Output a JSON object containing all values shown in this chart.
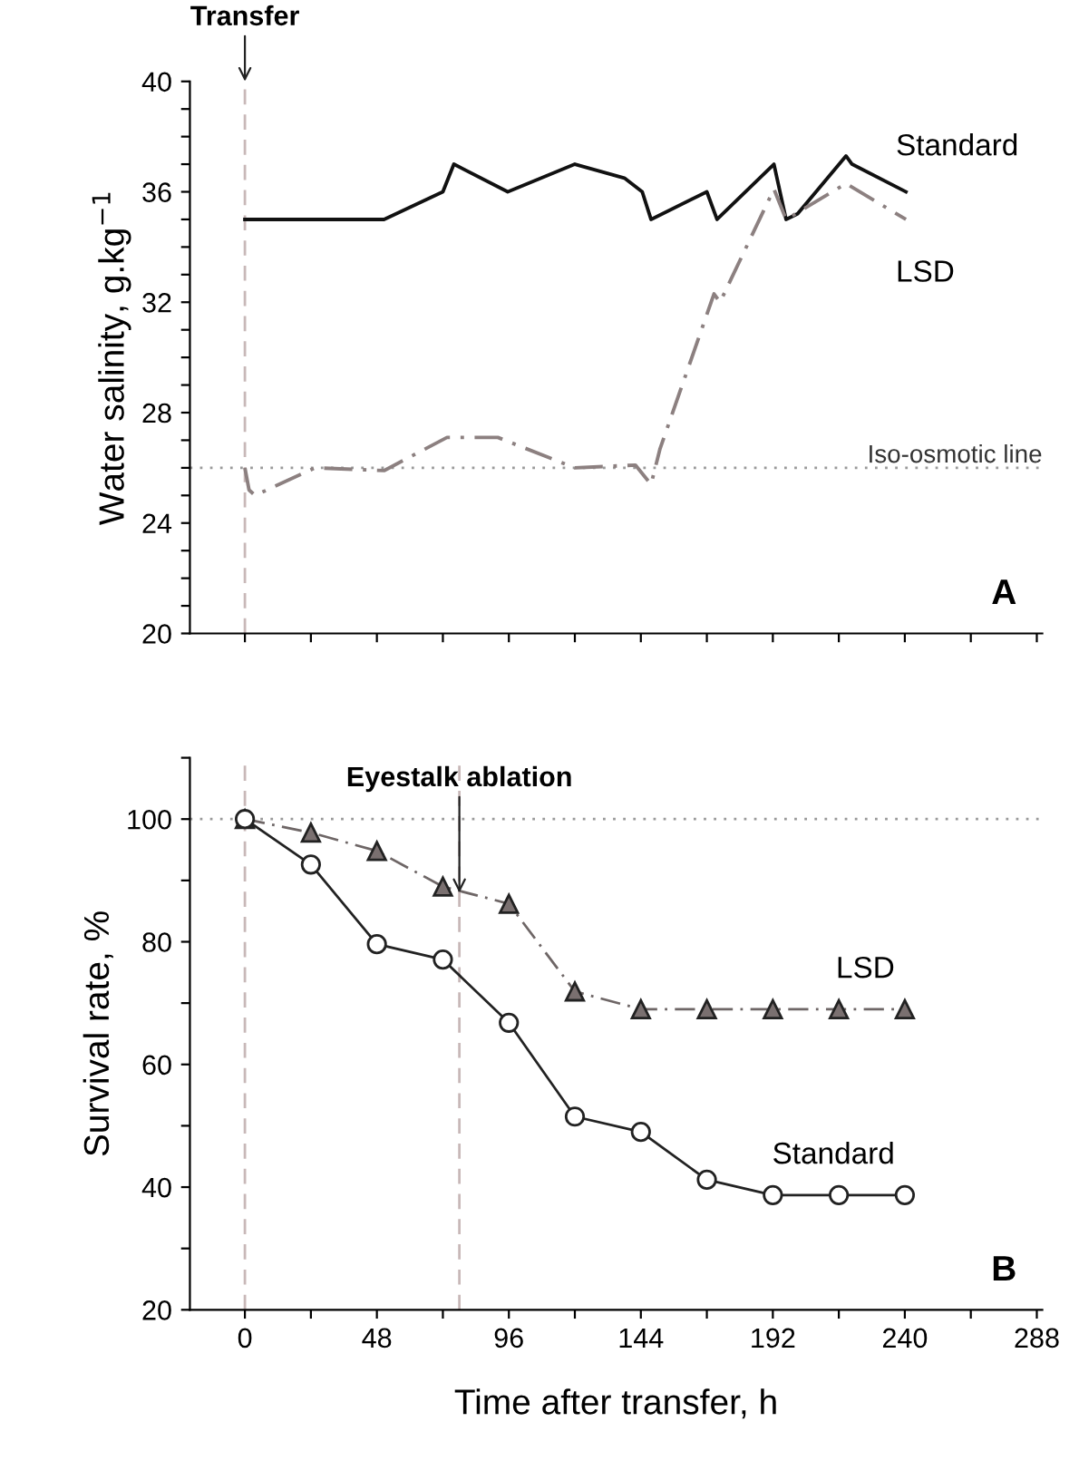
{
  "chart_data": [
    {
      "type": "line",
      "ylabel": "Water salinity, g.kg$^{−1}$",
      "xlim": [
        -20,
        290
      ],
      "ylim": [
        20,
        40
      ],
      "xticks": [
        {
          "value": 0,
          "label": null
        },
        {
          "value": 24,
          "label": null
        },
        {
          "value": 48,
          "label": null
        },
        {
          "value": 72,
          "label": null
        },
        {
          "value": 96,
          "label": null
        },
        {
          "value": 120,
          "label": null
        },
        {
          "value": 144,
          "label": null
        },
        {
          "value": 168,
          "label": null
        },
        {
          "value": 192,
          "label": null
        },
        {
          "value": 216,
          "label": null
        },
        {
          "value": 240,
          "label": null
        },
        {
          "value": 264,
          "label": null
        },
        {
          "value": 288,
          "label": null
        }
      ],
      "yticks": [
        20,
        {
          "value": 21,
          "label": null
        },
        {
          "value": 22,
          "label": null
        },
        {
          "value": 23,
          "label": null
        },
        24,
        {
          "value": 25,
          "label": null
        },
        {
          "value": 26,
          "label": null
        },
        {
          "value": 27,
          "label": null
        },
        28,
        {
          "value": 29,
          "label": null
        },
        {
          "value": 30,
          "label": null
        },
        {
          "value": 31,
          "label": null
        },
        32,
        {
          "value": 33,
          "label": null
        },
        {
          "value": 34,
          "label": null
        },
        {
          "value": 35,
          "label": null
        },
        36,
        {
          "value": 37,
          "label": null
        },
        {
          "value": 38,
          "label": null
        },
        {
          "value": 39,
          "label": null
        },
        40
      ],
      "tick_labels": "y",
      "grid": false,
      "series": [
        {
          "name": "Standard",
          "color": "#111111",
          "line_style": "solid",
          "x": [
            0,
            50.6,
            72,
            76,
            95.6,
            120,
            138,
            144.5,
            147.7,
            168,
            171.7,
            192.4,
            196.8,
            201,
            218.6,
            220.8,
            240.4
          ],
          "values": [
            35,
            35,
            36,
            37,
            36,
            37,
            36.5,
            36,
            35,
            36,
            35,
            37,
            35,
            35.2,
            37.3,
            37,
            36
          ]
        },
        {
          "name": "LSD",
          "color": "#8c8080",
          "line_style": "dashdot",
          "x": [
            0,
            1.5,
            3.7,
            25.5,
            50.6,
            73.5,
            92,
            120,
            142,
            147.7,
            151,
            170.6,
            172.8,
            192.4,
            196.8,
            218.6,
            240.4
          ],
          "values": [
            26,
            25.2,
            25,
            26,
            25.9,
            27.1,
            27.1,
            26,
            26.1,
            25.4,
            26.7,
            32.3,
            32,
            36.1,
            35,
            36.3,
            35
          ]
        }
      ],
      "ref_lines": [
        {
          "axis": "y",
          "value": 26,
          "label": "Iso-osmotic line",
          "color": "#999999",
          "line_style": "dotted"
        },
        {
          "axis": "x",
          "value": 0,
          "color": "#c8b8b8",
          "line_style": "dashed"
        }
      ],
      "annotations": [
        {
          "text": "Transfer",
          "x": 0,
          "y": 40
        },
        "A"
      ]
    },
    {
      "type": "line",
      "xlabel": "Time after transfer, h",
      "ylabel": "Survival rate, %",
      "xlim": [
        -20,
        290
      ],
      "ylim": [
        20,
        110
      ],
      "xticks": [
        0,
        {
          "value": 24,
          "label": null
        },
        48,
        {
          "value": 72,
          "label": null
        },
        96,
        {
          "value": 120,
          "label": null
        },
        144,
        {
          "value": 168,
          "label": null
        },
        192,
        {
          "value": 216,
          "label": null
        },
        240,
        {
          "value": 264,
          "label": null
        },
        288
      ],
      "yticks": [
        20,
        {
          "value": 30,
          "label": null
        },
        40,
        {
          "value": 50,
          "label": null
        },
        60,
        {
          "value": 70,
          "label": null
        },
        80,
        {
          "value": 90,
          "label": null
        },
        100,
        {
          "value": 110,
          "label": null
        }
      ],
      "grid": false,
      "series": [
        {
          "name": "LSD",
          "color": "#6e6666",
          "line_style": "dashdot",
          "marker": "triangle",
          "x": [
            0,
            24,
            48,
            72,
            96,
            120,
            144,
            168,
            192,
            216,
            240
          ],
          "values": [
            100,
            97.8,
            94.8,
            89.0,
            86.2,
            71.9,
            69.0,
            69.0,
            69.0,
            69.0,
            69.0
          ]
        },
        {
          "name": "Standard",
          "color": "#222222",
          "line_style": "solid",
          "marker": "circle",
          "x": [
            0,
            24,
            48,
            72,
            96,
            120,
            144,
            168,
            192,
            216,
            240
          ],
          "values": [
            100,
            92.6,
            79.6,
            77.1,
            66.8,
            51.5,
            49.0,
            41.2,
            38.7,
            38.7,
            38.7
          ]
        }
      ],
      "ref_lines": [
        {
          "axis": "y",
          "value": 100,
          "color": "#999999",
          "line_style": "dotted"
        },
        {
          "axis": "x",
          "value": 0,
          "color": "#c8b8b8",
          "line_style": "dashed"
        },
        {
          "axis": "x",
          "value": 78,
          "color": "#c8b8b8",
          "line_style": "dashed"
        }
      ],
      "annotations": [
        {
          "text": "Eyestalk ablation",
          "x": 78,
          "y": 88
        },
        "B"
      ]
    }
  ]
}
